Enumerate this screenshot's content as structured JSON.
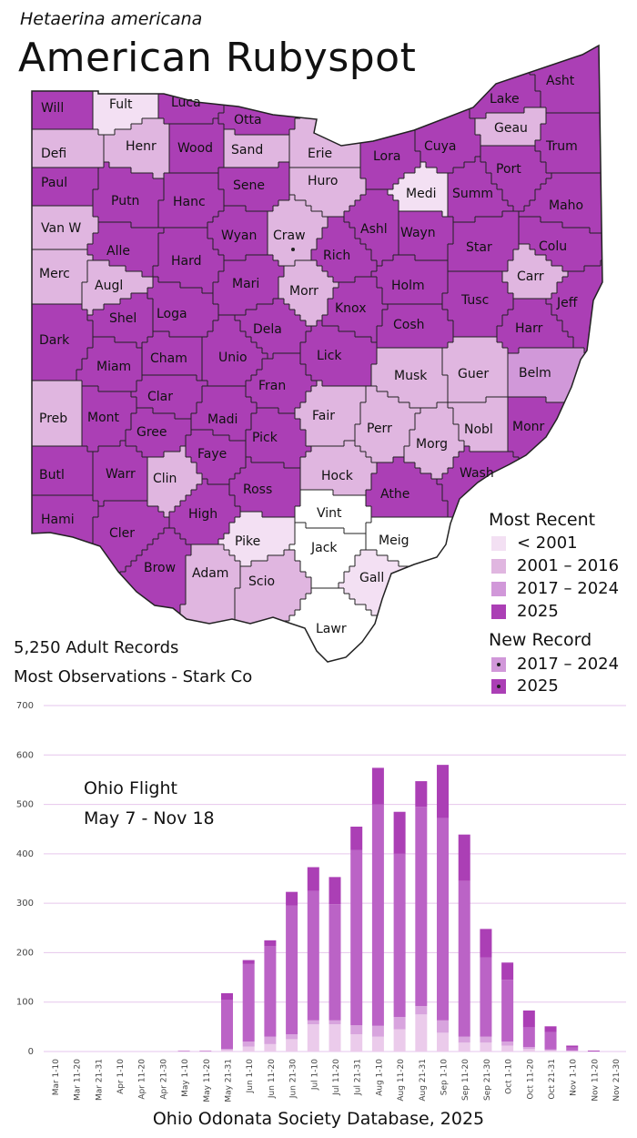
{
  "header": {
    "scientific_name": "Hetaerina americana",
    "common_name": "American Rubyspot"
  },
  "stats": {
    "records": "5,250 Adult Records",
    "most_observations": "Most Observations - Stark Co"
  },
  "legend": {
    "most_recent_title": "Most Recent",
    "most_recent": [
      {
        "label": "< 2001",
        "color": "#f3e0f3"
      },
      {
        "label": "2001 – 2016",
        "color": "#e0b6e0"
      },
      {
        "label": "2017 – 2024",
        "color": "#d198d9"
      },
      {
        "label": "2025",
        "color": "#ab3fb5"
      }
    ],
    "new_record_title": "New Record",
    "new_record": [
      {
        "label": "2017 – 2024",
        "color": "#d198d9"
      },
      {
        "label": "2025",
        "color": "#ab3fb5"
      }
    ]
  },
  "colors": {
    "none": "#ffffff",
    "lt2001": "#f3e0f3",
    "c2001_2016": "#e0b6e0",
    "c2017_2024": "#d198d9",
    "c2025": "#ab3fb5",
    "border": "#222222"
  },
  "counties": [
    {
      "name": "Will",
      "cat": "c2025"
    },
    {
      "name": "Fult",
      "cat": "lt2001"
    },
    {
      "name": "Luca",
      "cat": "c2025"
    },
    {
      "name": "Otta",
      "cat": "c2025"
    },
    {
      "name": "Lake",
      "cat": "c2025"
    },
    {
      "name": "Asht",
      "cat": "c2025"
    },
    {
      "name": "Defi",
      "cat": "c2001_2016"
    },
    {
      "name": "Henr",
      "cat": "c2001_2016"
    },
    {
      "name": "Wood",
      "cat": "c2025"
    },
    {
      "name": "Sand",
      "cat": "c2001_2016"
    },
    {
      "name": "Erie",
      "cat": "c2001_2016"
    },
    {
      "name": "Lora",
      "cat": "c2025"
    },
    {
      "name": "Cuya",
      "cat": "c2025"
    },
    {
      "name": "Geau",
      "cat": "c2001_2016"
    },
    {
      "name": "Trum",
      "cat": "c2025"
    },
    {
      "name": "Paul",
      "cat": "c2025"
    },
    {
      "name": "Putn",
      "cat": "c2025"
    },
    {
      "name": "Hanc",
      "cat": "c2025"
    },
    {
      "name": "Sene",
      "cat": "c2025"
    },
    {
      "name": "Huro",
      "cat": "c2001_2016"
    },
    {
      "name": "Medi",
      "cat": "lt2001"
    },
    {
      "name": "Summ",
      "cat": "c2025"
    },
    {
      "name": "Port",
      "cat": "c2025"
    },
    {
      "name": "Maho",
      "cat": "c2025"
    },
    {
      "name": "Van W",
      "cat": "c2001_2016"
    },
    {
      "name": "Alle",
      "cat": "c2025"
    },
    {
      "name": "Wyan",
      "cat": "c2025"
    },
    {
      "name": "Craw",
      "cat": "c2001_2016",
      "new": "2025"
    },
    {
      "name": "Rich",
      "cat": "c2025"
    },
    {
      "name": "Ashl",
      "cat": "c2025"
    },
    {
      "name": "Wayn",
      "cat": "c2025"
    },
    {
      "name": "Star",
      "cat": "c2025"
    },
    {
      "name": "Colu",
      "cat": "c2025"
    },
    {
      "name": "Merc",
      "cat": "c2001_2016"
    },
    {
      "name": "Augl",
      "cat": "c2001_2016"
    },
    {
      "name": "Hard",
      "cat": "c2025"
    },
    {
      "name": "Mari",
      "cat": "c2025"
    },
    {
      "name": "Morr",
      "cat": "c2001_2016"
    },
    {
      "name": "Knox",
      "cat": "c2025"
    },
    {
      "name": "Holm",
      "cat": "c2025"
    },
    {
      "name": "Tusc",
      "cat": "c2025"
    },
    {
      "name": "Carr",
      "cat": "c2001_2016"
    },
    {
      "name": "Jeff",
      "cat": "c2025"
    },
    {
      "name": "Shel",
      "cat": "c2025"
    },
    {
      "name": "Loga",
      "cat": "c2025"
    },
    {
      "name": "Dela",
      "cat": "c2025"
    },
    {
      "name": "Lick",
      "cat": "c2025"
    },
    {
      "name": "Cosh",
      "cat": "c2025"
    },
    {
      "name": "Harr",
      "cat": "c2025"
    },
    {
      "name": "Dark",
      "cat": "c2025"
    },
    {
      "name": "Miam",
      "cat": "c2025"
    },
    {
      "name": "Cham",
      "cat": "c2025"
    },
    {
      "name": "Unio",
      "cat": "c2025"
    },
    {
      "name": "Fran",
      "cat": "c2025"
    },
    {
      "name": "Musk",
      "cat": "c2001_2016"
    },
    {
      "name": "Guer",
      "cat": "c2001_2016"
    },
    {
      "name": "Belm",
      "cat": "c2017_2024"
    },
    {
      "name": "Clar",
      "cat": "c2025"
    },
    {
      "name": "Preb",
      "cat": "c2001_2016"
    },
    {
      "name": "Mont",
      "cat": "c2025"
    },
    {
      "name": "Gree",
      "cat": "c2025"
    },
    {
      "name": "Madi",
      "cat": "c2025"
    },
    {
      "name": "Fair",
      "cat": "c2001_2016"
    },
    {
      "name": "Perr",
      "cat": "c2001_2016"
    },
    {
      "name": "Nobl",
      "cat": "c2001_2016"
    },
    {
      "name": "Monr",
      "cat": "c2025"
    },
    {
      "name": "Faye",
      "cat": "c2025"
    },
    {
      "name": "Pick",
      "cat": "c2025"
    },
    {
      "name": "Morg",
      "cat": "c2001_2016"
    },
    {
      "name": "Wash",
      "cat": "c2025"
    },
    {
      "name": "Butl",
      "cat": "c2025"
    },
    {
      "name": "Warr",
      "cat": "c2025"
    },
    {
      "name": "Clin",
      "cat": "c2001_2016"
    },
    {
      "name": "Ross",
      "cat": "c2025"
    },
    {
      "name": "Hock",
      "cat": "c2001_2016"
    },
    {
      "name": "Athe",
      "cat": "c2025"
    },
    {
      "name": "Hami",
      "cat": "c2025"
    },
    {
      "name": "Cler",
      "cat": "c2025"
    },
    {
      "name": "High",
      "cat": "c2025"
    },
    {
      "name": "Vint",
      "cat": "none"
    },
    {
      "name": "Pike",
      "cat": "lt2001"
    },
    {
      "name": "Jack",
      "cat": "none"
    },
    {
      "name": "Meig",
      "cat": "none"
    },
    {
      "name": "Brow",
      "cat": "c2025"
    },
    {
      "name": "Adam",
      "cat": "c2001_2016"
    },
    {
      "name": "Scio",
      "cat": "c2001_2016"
    },
    {
      "name": "Gall",
      "cat": "lt2001"
    },
    {
      "name": "Lawr",
      "cat": "none"
    }
  ],
  "chart_text": {
    "flight_title": "Ohio Flight",
    "flight_dates": "May 7 - Nov 18"
  },
  "footer": {
    "source": "Ohio Odonata Society Database, 2025"
  },
  "chart_data": {
    "type": "bar",
    "stacked": true,
    "categories": [
      "Mar 1-10",
      "Mar 11-20",
      "Mar 21-31",
      "Apr 1-10",
      "Apr 11-20",
      "Apr 21-30",
      "May 1-10",
      "May 11-20",
      "May 21-31",
      "Jun 1-10",
      "Jun 11-20",
      "Jun 21-30",
      "Jul 1-10",
      "Jul 11-20",
      "Jul 21-31",
      "Aug 1-10",
      "Aug 11-20",
      "Aug 21-31",
      "Sep 1-10",
      "Sep 11-20",
      "Sep 21-30",
      "Oct 1-10",
      "Oct 11-20",
      "Oct 21-31",
      "Nov 1-10",
      "Nov 11-20",
      "Nov 21-30"
    ],
    "series": [
      {
        "color": "#ebcbeb",
        "values": [
          0,
          0,
          0,
          0,
          0,
          0,
          1,
          1,
          3,
          10,
          15,
          25,
          55,
          55,
          35,
          30,
          45,
          75,
          38,
          18,
          18,
          12,
          5,
          2,
          1,
          0,
          0
        ]
      },
      {
        "color": "#d8a4de",
        "values": [
          0,
          0,
          0,
          0,
          0,
          0,
          0,
          0,
          2,
          10,
          15,
          10,
          8,
          8,
          18,
          22,
          25,
          17,
          25,
          12,
          12,
          8,
          4,
          2,
          1,
          0,
          0
        ]
      },
      {
        "color": "#bb63c6",
        "values": [
          0,
          0,
          0,
          0,
          0,
          0,
          1,
          1,
          100,
          157,
          183,
          260,
          262,
          235,
          355,
          448,
          330,
          403,
          409,
          315,
          160,
          125,
          40,
          35,
          6,
          1,
          0
        ]
      },
      {
        "color": "#ab3fb5",
        "values": [
          0,
          0,
          0,
          0,
          0,
          0,
          0,
          0,
          13,
          8,
          12,
          28,
          48,
          55,
          47,
          74,
          85,
          52,
          108,
          94,
          58,
          35,
          34,
          12,
          4,
          1,
          0
        ]
      }
    ],
    "ylim": [
      0,
      700
    ],
    "yticks": [
      0,
      100,
      200,
      300,
      400,
      500,
      600,
      700
    ],
    "grid": true
  }
}
